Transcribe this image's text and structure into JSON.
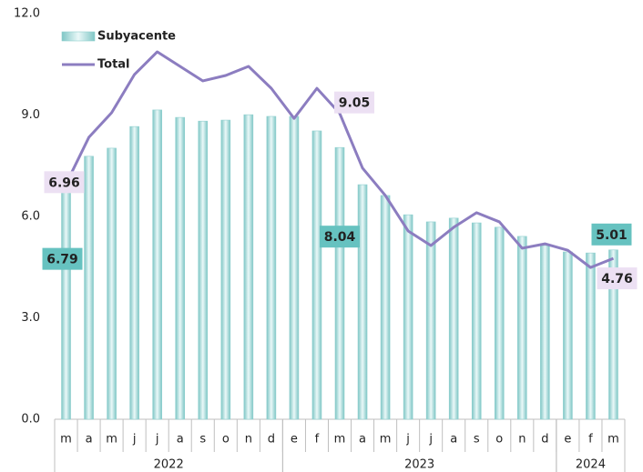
{
  "chart_data": {
    "type": "bar_line",
    "categories": [
      "m",
      "a",
      "m",
      "j",
      "j",
      "a",
      "s",
      "o",
      "n",
      "d",
      "e",
      "f",
      "m",
      "a",
      "m",
      "j",
      "j",
      "a",
      "s",
      "o",
      "n",
      "d",
      "e",
      "f",
      "m"
    ],
    "groups": [
      "2022",
      "2023",
      "2024"
    ],
    "group_counts": [
      10,
      12,
      3
    ],
    "ylim": [
      0,
      12
    ],
    "yticks": [
      {
        "value": 0,
        "label": "0.0"
      },
      {
        "value": 3,
        "label": "3.0"
      },
      {
        "value": 6,
        "label": "6.0"
      },
      {
        "value": 9,
        "label": "9.0"
      },
      {
        "value": 12,
        "label": "12.0"
      }
    ],
    "series": [
      {
        "name": "Subyacente",
        "type": "bar",
        "color": "#8fd0cf",
        "label_color": "#66c2c0",
        "values": [
          6.79,
          7.78,
          8.02,
          8.66,
          9.15,
          8.93,
          8.82,
          8.85,
          9.01,
          8.96,
          8.96,
          8.53,
          8.04,
          6.94,
          6.62,
          6.05,
          5.84,
          5.95,
          5.81,
          5.68,
          5.41,
          5.14,
          4.95,
          4.92,
          5.01
        ],
        "value_labels": [
          "6.79",
          null,
          null,
          null,
          null,
          null,
          null,
          null,
          null,
          null,
          null,
          null,
          "8.04",
          null,
          null,
          null,
          null,
          null,
          null,
          null,
          null,
          null,
          null,
          null,
          "5.01"
        ]
      },
      {
        "name": "Total",
        "type": "line",
        "color": "#8c7dc0",
        "label_color": "#ece0f3",
        "values": [
          6.96,
          8.34,
          9.07,
          10.2,
          10.87,
          10.44,
          10.01,
          10.17,
          10.44,
          9.79,
          8.9,
          9.79,
          9.05,
          7.43,
          6.62,
          5.57,
          5.14,
          5.68,
          6.11,
          5.84,
          5.06,
          5.19,
          5.0,
          4.49,
          4.76
        ],
        "value_labels": [
          "6.96",
          null,
          null,
          null,
          null,
          null,
          null,
          null,
          null,
          null,
          null,
          null,
          "9.05",
          null,
          null,
          null,
          null,
          null,
          null,
          null,
          null,
          null,
          null,
          null,
          "4.76"
        ]
      }
    ],
    "legend": "top-left"
  }
}
